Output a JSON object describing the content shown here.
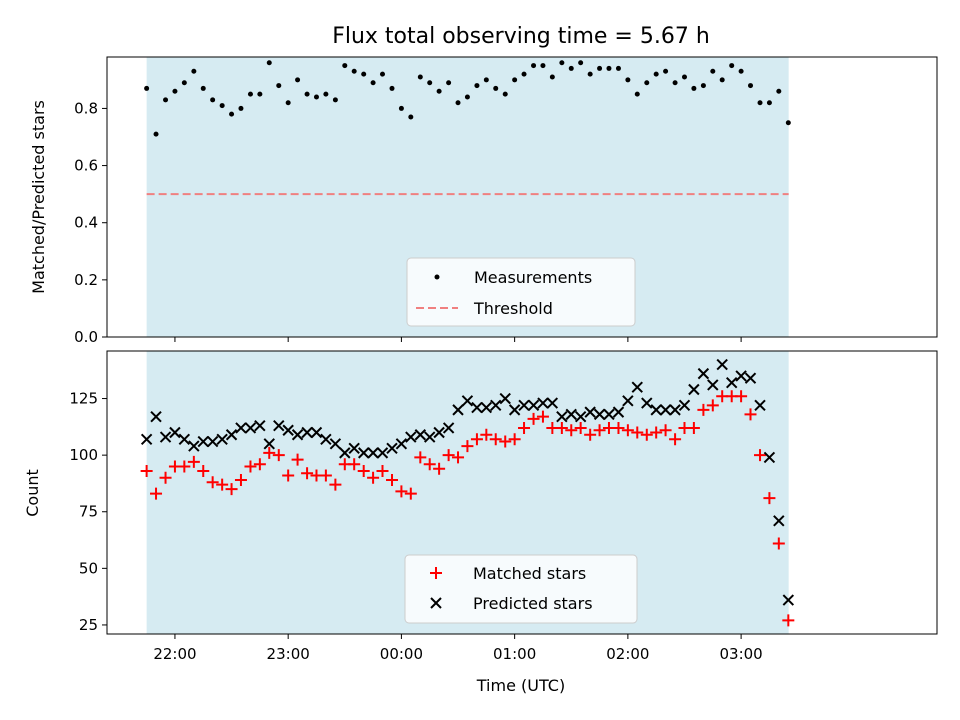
{
  "chart_data": [
    {
      "type": "scatter",
      "title": "Flux total observing time = 5.67 h",
      "xlabel": "",
      "ylabel": "Matched/Predicted stars",
      "xlim": [
        -0.35,
        6.98
      ],
      "ylim": [
        0.0,
        0.98
      ],
      "yticks": [
        0.0,
        0.2,
        0.4,
        0.6,
        0.8
      ],
      "ytick_labels": [
        "0.0",
        "0.2",
        "0.4",
        "0.6",
        "0.8"
      ],
      "shaded_span": [
        0.0,
        5.67
      ],
      "threshold": 0.5,
      "legend": {
        "position": "lower-center",
        "entries": [
          "Measurements",
          "Threshold"
        ]
      },
      "series": [
        {
          "name": "Measurements",
          "color": "#000000",
          "marker": "dot",
          "x": [
            0.0,
            0.083,
            0.167,
            0.25,
            0.333,
            0.417,
            0.5,
            0.583,
            0.667,
            0.75,
            0.833,
            0.917,
            1.0,
            1.083,
            1.167,
            1.25,
            1.333,
            1.417,
            1.5,
            1.583,
            1.667,
            1.75,
            1.833,
            1.917,
            2.0,
            2.083,
            2.167,
            2.25,
            2.333,
            2.417,
            2.5,
            2.583,
            2.667,
            2.75,
            2.833,
            2.917,
            3.0,
            3.083,
            3.167,
            3.25,
            3.333,
            3.417,
            3.5,
            3.583,
            3.667,
            3.75,
            3.833,
            3.917,
            4.0,
            4.083,
            4.167,
            4.25,
            4.333,
            4.417,
            4.5,
            4.583,
            4.667,
            4.75,
            4.833,
            4.917,
            5.0,
            5.083,
            5.167,
            5.25,
            5.333,
            5.417,
            5.5,
            5.583,
            5.667
          ],
          "y": [
            0.87,
            0.71,
            0.83,
            0.86,
            0.89,
            0.93,
            0.87,
            0.83,
            0.81,
            0.78,
            0.8,
            0.85,
            0.85,
            0.96,
            0.88,
            0.82,
            0.9,
            0.85,
            0.84,
            0.85,
            0.83,
            0.95,
            0.93,
            0.92,
            0.89,
            0.92,
            0.87,
            0.8,
            0.77,
            0.91,
            0.89,
            0.86,
            0.89,
            0.82,
            0.84,
            0.88,
            0.9,
            0.87,
            0.85,
            0.9,
            0.92,
            0.95,
            0.95,
            0.91,
            0.96,
            0.94,
            0.96,
            0.92,
            0.94,
            0.94,
            0.94,
            0.9,
            0.85,
            0.89,
            0.92,
            0.93,
            0.89,
            0.91,
            0.87,
            0.88,
            0.93,
            0.9,
            0.95,
            0.93,
            0.88,
            0.82,
            0.82,
            0.86,
            0.75
          ]
        }
      ]
    },
    {
      "type": "scatter",
      "title": "",
      "xlabel": "Time (UTC)",
      "ylabel": "Count",
      "xlim": [
        -0.35,
        6.98
      ],
      "ylim": [
        21,
        146
      ],
      "yticks": [
        25,
        50,
        75,
        100,
        125
      ],
      "ytick_labels": [
        "25",
        "50",
        "75",
        "100",
        "125"
      ],
      "xticks": [
        0.25,
        1.25,
        2.25,
        3.25,
        4.25,
        5.25
      ],
      "xtick_labels": [
        "22:00",
        "23:00",
        "00:00",
        "01:00",
        "02:00",
        "03:00"
      ],
      "shaded_span": [
        0.0,
        5.67
      ],
      "legend": {
        "position": "lower-center",
        "entries": [
          "Matched stars",
          "Predicted stars"
        ]
      },
      "series": [
        {
          "name": "Matched stars",
          "color": "#ff0000",
          "marker": "plus",
          "x": [
            0.0,
            0.083,
            0.167,
            0.25,
            0.333,
            0.417,
            0.5,
            0.583,
            0.667,
            0.75,
            0.833,
            0.917,
            1.0,
            1.083,
            1.167,
            1.25,
            1.333,
            1.417,
            1.5,
            1.583,
            1.667,
            1.75,
            1.833,
            1.917,
            2.0,
            2.083,
            2.167,
            2.25,
            2.333,
            2.417,
            2.5,
            2.583,
            2.667,
            2.75,
            2.833,
            2.917,
            3.0,
            3.083,
            3.167,
            3.25,
            3.333,
            3.417,
            3.5,
            3.583,
            3.667,
            3.75,
            3.833,
            3.917,
            4.0,
            4.083,
            4.167,
            4.25,
            4.333,
            4.417,
            4.5,
            4.583,
            4.667,
            4.75,
            4.833,
            4.917,
            5.0,
            5.083,
            5.167,
            5.25,
            5.333,
            5.417,
            5.5,
            5.583,
            5.667
          ],
          "y": [
            93,
            83,
            90,
            95,
            95,
            97,
            93,
            88,
            87,
            85,
            89,
            95,
            96,
            101,
            100,
            91,
            98,
            92,
            91,
            91,
            87,
            96,
            96,
            93,
            90,
            93,
            89,
            84,
            83,
            99,
            96,
            94,
            100,
            99,
            104,
            107,
            109,
            107,
            106,
            107,
            112,
            116,
            117,
            112,
            112,
            111,
            112,
            109,
            111,
            112,
            112,
            111,
            110,
            109,
            110,
            111,
            107,
            112,
            112,
            120,
            122,
            126,
            126,
            126,
            118,
            100,
            81,
            61,
            27
          ]
        },
        {
          "name": "Predicted stars",
          "color": "#000000",
          "marker": "x",
          "x": [
            0.0,
            0.083,
            0.167,
            0.25,
            0.333,
            0.417,
            0.5,
            0.583,
            0.667,
            0.75,
            0.833,
            0.917,
            1.0,
            1.083,
            1.167,
            1.25,
            1.333,
            1.417,
            1.5,
            1.583,
            1.667,
            1.75,
            1.833,
            1.917,
            2.0,
            2.083,
            2.167,
            2.25,
            2.333,
            2.417,
            2.5,
            2.583,
            2.667,
            2.75,
            2.833,
            2.917,
            3.0,
            3.083,
            3.167,
            3.25,
            3.333,
            3.417,
            3.5,
            3.583,
            3.667,
            3.75,
            3.833,
            3.917,
            4.0,
            4.083,
            4.167,
            4.25,
            4.333,
            4.417,
            4.5,
            4.583,
            4.667,
            4.75,
            4.833,
            4.917,
            5.0,
            5.083,
            5.167,
            5.25,
            5.333,
            5.417,
            5.5,
            5.583,
            5.667
          ],
          "y": [
            107,
            117,
            108,
            110,
            107,
            104,
            106,
            106,
            107,
            109,
            112,
            112,
            113,
            105,
            113,
            111,
            109,
            110,
            110,
            107,
            105,
            101,
            103,
            101,
            101,
            101,
            103,
            105,
            108,
            109,
            108,
            110,
            112,
            120,
            124,
            121,
            121,
            122,
            125,
            120,
            122,
            122,
            123,
            123,
            117,
            118,
            117,
            119,
            118,
            118,
            119,
            124,
            130,
            123,
            120,
            120,
            120,
            122,
            129,
            136,
            131,
            140,
            132,
            135,
            134,
            122,
            99,
            71,
            36
          ]
        }
      ]
    }
  ]
}
